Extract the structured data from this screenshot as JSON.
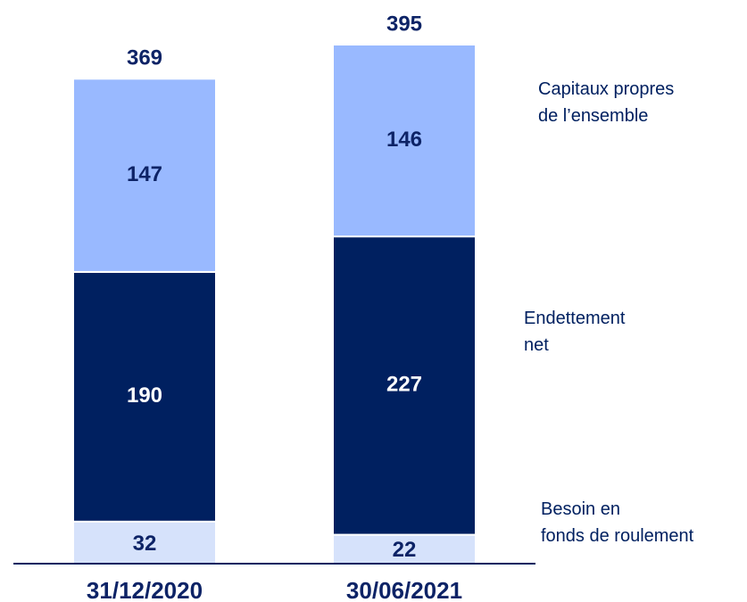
{
  "chart_data": {
    "type": "stacked_bar",
    "categories": [
      "31/12/2020",
      "30/06/2021"
    ],
    "series": [
      {
        "name": "Besoin en\nfonds de roulement",
        "color": "#d6e2fb",
        "values": [
          32,
          22
        ]
      },
      {
        "name": "Endettement\nnet",
        "color": "#002060",
        "values": [
          190,
          227
        ]
      },
      {
        "name": "Capitaux propres\nde l’ensemble",
        "color": "#99b9ff",
        "values": [
          147,
          146
        ]
      }
    ],
    "totals": [
      369,
      395
    ]
  }
}
